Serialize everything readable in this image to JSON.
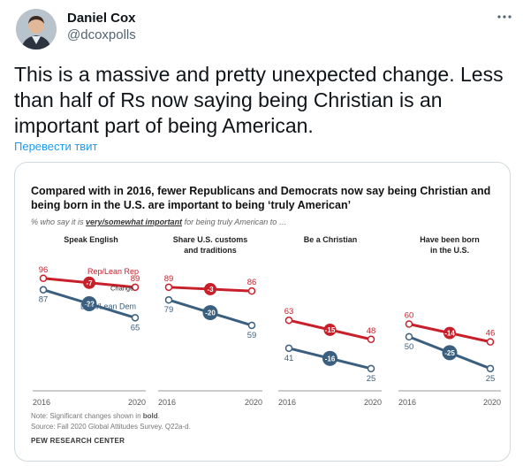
{
  "tweet": {
    "author_name": "Daniel Cox",
    "author_handle": "@dcoxpolls",
    "text": "This is a massive and pretty unexpected change. Less than half of Rs now saying being Christian is an important part of being American.",
    "translate_label": "Перевести твит"
  },
  "figure": {
    "title": "Compared with in 2016, fewer Republicans and Democrats now say being Christian and being born in the U.S. are important to being ‘truly American’",
    "subtitle_pre": "% who say it is ",
    "subtitle_em": "very/somewhat important",
    "subtitle_post": " for being truly American to …",
    "note_pre": "Note: Significant changes shown in ",
    "note_bold": "bold",
    "note_post": ".",
    "source": "Source: Fall 2020 Global Attitudes Survey. Q22a-d.",
    "org": "PEW RESEARCH CENTER"
  },
  "chart_data": {
    "type": "line",
    "x": [
      "2016",
      "2020"
    ],
    "change_label": "Change",
    "colors": {
      "rep": "#c8202a",
      "dem": "#3b5f7e"
    },
    "panels": [
      {
        "title": [
          "Speak English"
        ],
        "series": [
          {
            "name": "Rep/Lean Rep",
            "values": [
              96,
              89
            ],
            "change": "-7"
          },
          {
            "name": "Dem/Lean Dem",
            "values": [
              87,
              65
            ],
            "change": "-22"
          }
        ]
      },
      {
        "title": [
          "Share U.S. customs",
          "and traditions"
        ],
        "series": [
          {
            "name": "",
            "values": [
              89,
              86
            ],
            "change": "-3"
          },
          {
            "name": "",
            "values": [
              79,
              59
            ],
            "change": "-20"
          }
        ]
      },
      {
        "title": [
          "Be a Christian"
        ],
        "series": [
          {
            "name": "",
            "values": [
              63,
              48
            ],
            "change": "-15"
          },
          {
            "name": "",
            "values": [
              41,
              25
            ],
            "change": "-16"
          }
        ]
      },
      {
        "title": [
          "Have been born",
          "in the U.S."
        ],
        "series": [
          {
            "name": "",
            "values": [
              60,
              46
            ],
            "change": "-14"
          },
          {
            "name": "",
            "values": [
              50,
              25
            ],
            "change": "-25"
          }
        ]
      }
    ]
  }
}
